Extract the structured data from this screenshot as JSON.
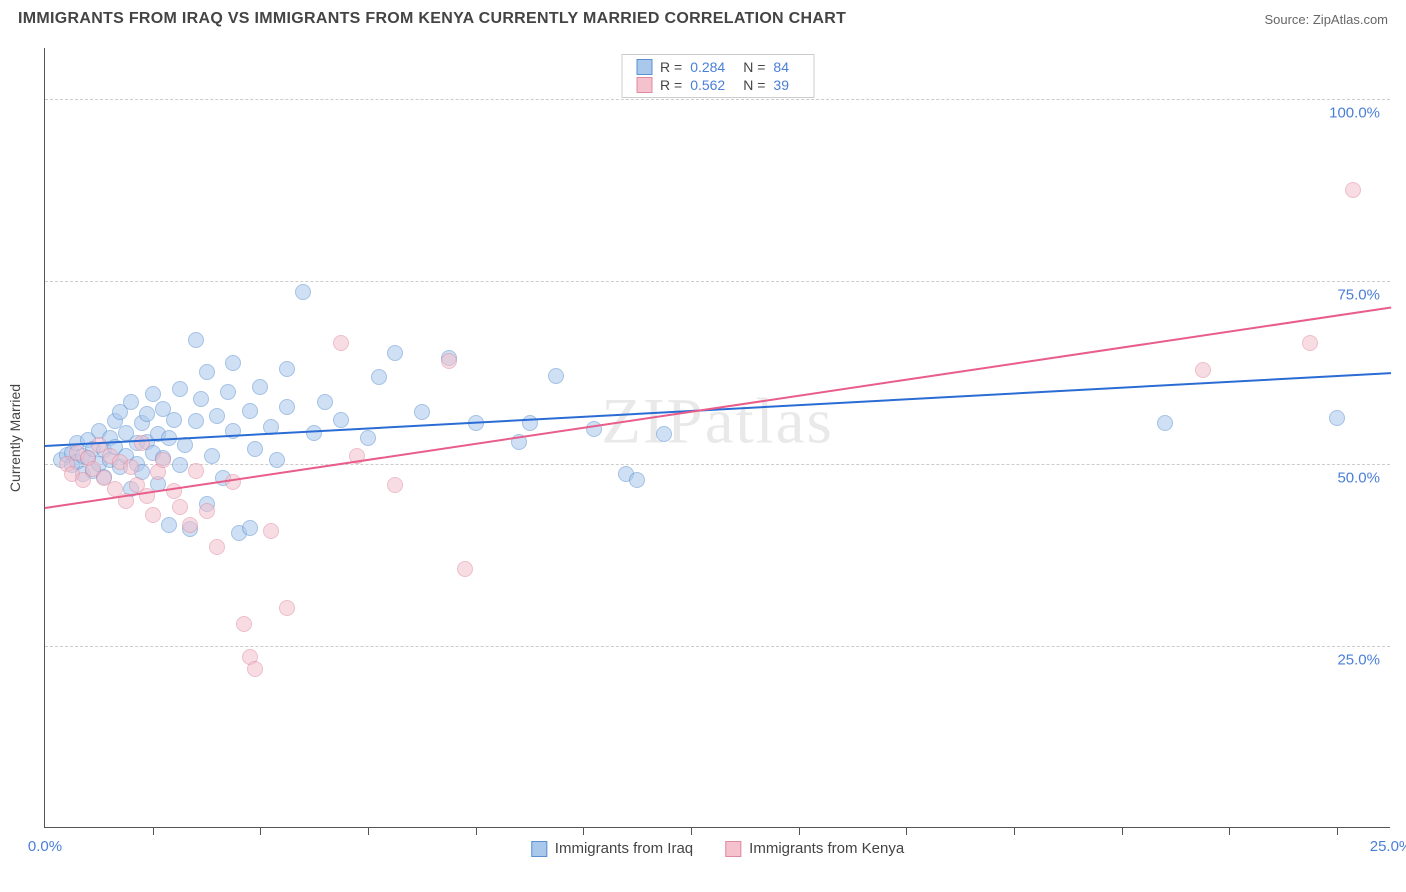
{
  "title": "IMMIGRANTS FROM IRAQ VS IMMIGRANTS FROM KENYA CURRENTLY MARRIED CORRELATION CHART",
  "source": "Source: ZipAtlas.com",
  "watermark": "ZIPatlas",
  "chart": {
    "type": "scatter",
    "background_color": "#ffffff",
    "grid_color": "#cccccc",
    "axis_color": "#555555",
    "y_axis_title": "Currently Married",
    "y_axis_title_fontsize": 14,
    "tick_label_color": "#4a7fd8",
    "tick_label_fontsize": 15,
    "xlim": [
      0,
      25
    ],
    "ylim": [
      0,
      107
    ],
    "x_ticks": [
      {
        "pos": 0.0,
        "label": "0.0%"
      },
      {
        "pos": 25.0,
        "label": "25.0%"
      }
    ],
    "x_minor_ticks": [
      2,
      4,
      6,
      8,
      10,
      12,
      14,
      16,
      18,
      20,
      22,
      24
    ],
    "y_ticks": [
      {
        "pos": 25.0,
        "label": "25.0%"
      },
      {
        "pos": 50.0,
        "label": "50.0%"
      },
      {
        "pos": 75.0,
        "label": "75.0%"
      },
      {
        "pos": 100.0,
        "label": "100.0%"
      }
    ],
    "marker_radius": 8,
    "marker_opacity": 0.55,
    "line_width": 2
  },
  "series": [
    {
      "name": "Immigrants from Iraq",
      "fill_color": "#a9c8ec",
      "stroke_color": "#5a8fd0",
      "line_color": "#2b6cd4",
      "legend": {
        "r_label": "R =",
        "r_value": "0.284",
        "n_label": "N =",
        "n_value": "84"
      },
      "trend": {
        "x1": 0,
        "y1": 52.5,
        "x2": 25,
        "y2": 62.5
      },
      "points": [
        [
          0.3,
          50.5
        ],
        [
          0.4,
          51.2
        ],
        [
          0.5,
          49.8
        ],
        [
          0.5,
          51.5
        ],
        [
          0.6,
          50.2
        ],
        [
          0.6,
          52.8
        ],
        [
          0.7,
          48.5
        ],
        [
          0.7,
          51.0
        ],
        [
          0.8,
          50.8
        ],
        [
          0.8,
          53.2
        ],
        [
          0.9,
          49.0
        ],
        [
          0.9,
          52.0
        ],
        [
          1.0,
          50.0
        ],
        [
          1.0,
          54.5
        ],
        [
          1.1,
          51.8
        ],
        [
          1.1,
          48.2
        ],
        [
          1.2,
          53.5
        ],
        [
          1.2,
          50.5
        ],
        [
          1.3,
          55.8
        ],
        [
          1.3,
          52.2
        ],
        [
          1.4,
          49.5
        ],
        [
          1.4,
          57.0
        ],
        [
          1.5,
          51.0
        ],
        [
          1.5,
          54.2
        ],
        [
          1.6,
          46.5
        ],
        [
          1.6,
          58.5
        ],
        [
          1.7,
          52.8
        ],
        [
          1.7,
          50.0
        ],
        [
          1.8,
          55.5
        ],
        [
          1.8,
          48.8
        ],
        [
          1.9,
          53.0
        ],
        [
          1.9,
          56.8
        ],
        [
          2.0,
          51.5
        ],
        [
          2.0,
          59.5
        ],
        [
          2.1,
          47.2
        ],
        [
          2.1,
          54.0
        ],
        [
          2.2,
          50.8
        ],
        [
          2.2,
          57.5
        ],
        [
          2.3,
          53.5
        ],
        [
          2.3,
          41.5
        ],
        [
          2.4,
          56.0
        ],
        [
          2.5,
          49.8
        ],
        [
          2.5,
          60.2
        ],
        [
          2.6,
          52.5
        ],
        [
          2.7,
          41.0
        ],
        [
          2.8,
          55.8
        ],
        [
          2.8,
          67.0
        ],
        [
          2.9,
          58.8
        ],
        [
          3.0,
          44.5
        ],
        [
          3.0,
          62.5
        ],
        [
          3.1,
          51.0
        ],
        [
          3.2,
          56.5
        ],
        [
          3.3,
          48.0
        ],
        [
          3.4,
          59.8
        ],
        [
          3.5,
          54.5
        ],
        [
          3.5,
          63.8
        ],
        [
          3.6,
          40.5
        ],
        [
          3.8,
          57.2
        ],
        [
          3.8,
          41.2
        ],
        [
          3.9,
          52.0
        ],
        [
          4.0,
          60.5
        ],
        [
          4.2,
          55.0
        ],
        [
          4.3,
          50.5
        ],
        [
          4.5,
          57.8
        ],
        [
          4.5,
          63.0
        ],
        [
          4.8,
          73.5
        ],
        [
          5.0,
          54.2
        ],
        [
          5.2,
          58.5
        ],
        [
          5.5,
          56.0
        ],
        [
          6.0,
          53.5
        ],
        [
          6.2,
          61.8
        ],
        [
          6.5,
          65.2
        ],
        [
          7.0,
          57.0
        ],
        [
          7.5,
          64.5
        ],
        [
          8.0,
          55.5
        ],
        [
          8.8,
          53.0
        ],
        [
          9.0,
          55.5
        ],
        [
          9.5,
          62.0
        ],
        [
          10.2,
          54.8
        ],
        [
          10.8,
          48.5
        ],
        [
          11.0,
          47.8
        ],
        [
          11.5,
          54.0
        ],
        [
          20.8,
          55.5
        ],
        [
          24.0,
          56.2
        ]
      ]
    },
    {
      "name": "Immigrants from Kenya",
      "fill_color": "#f4c1cd",
      "stroke_color": "#e08aa0",
      "line_color": "#e85d8a",
      "legend": {
        "r_label": "R =",
        "r_value": "0.562",
        "n_label": "N =",
        "n_value": "39"
      },
      "trend": {
        "x1": 0,
        "y1": 44.0,
        "x2": 25,
        "y2": 71.5
      },
      "points": [
        [
          0.4,
          50.0
        ],
        [
          0.5,
          48.5
        ],
        [
          0.6,
          51.5
        ],
        [
          0.7,
          47.8
        ],
        [
          0.8,
          50.8
        ],
        [
          0.9,
          49.2
        ],
        [
          1.0,
          52.5
        ],
        [
          1.1,
          48.0
        ],
        [
          1.2,
          51.0
        ],
        [
          1.3,
          46.5
        ],
        [
          1.4,
          50.2
        ],
        [
          1.5,
          44.8
        ],
        [
          1.6,
          49.5
        ],
        [
          1.7,
          47.0
        ],
        [
          1.8,
          52.8
        ],
        [
          1.9,
          45.5
        ],
        [
          2.0,
          43.0
        ],
        [
          2.1,
          48.8
        ],
        [
          2.2,
          50.5
        ],
        [
          2.4,
          46.2
        ],
        [
          2.5,
          44.0
        ],
        [
          2.7,
          41.5
        ],
        [
          2.8,
          49.0
        ],
        [
          3.0,
          43.5
        ],
        [
          3.2,
          38.5
        ],
        [
          3.5,
          47.5
        ],
        [
          3.7,
          28.0
        ],
        [
          3.8,
          23.5
        ],
        [
          3.9,
          21.8
        ],
        [
          4.2,
          40.8
        ],
        [
          4.5,
          30.2
        ],
        [
          5.5,
          66.5
        ],
        [
          5.8,
          51.0
        ],
        [
          6.5,
          47.0
        ],
        [
          7.5,
          64.0
        ],
        [
          7.8,
          35.5
        ],
        [
          21.5,
          62.8
        ],
        [
          23.5,
          66.5
        ],
        [
          24.3,
          87.5
        ]
      ]
    }
  ]
}
